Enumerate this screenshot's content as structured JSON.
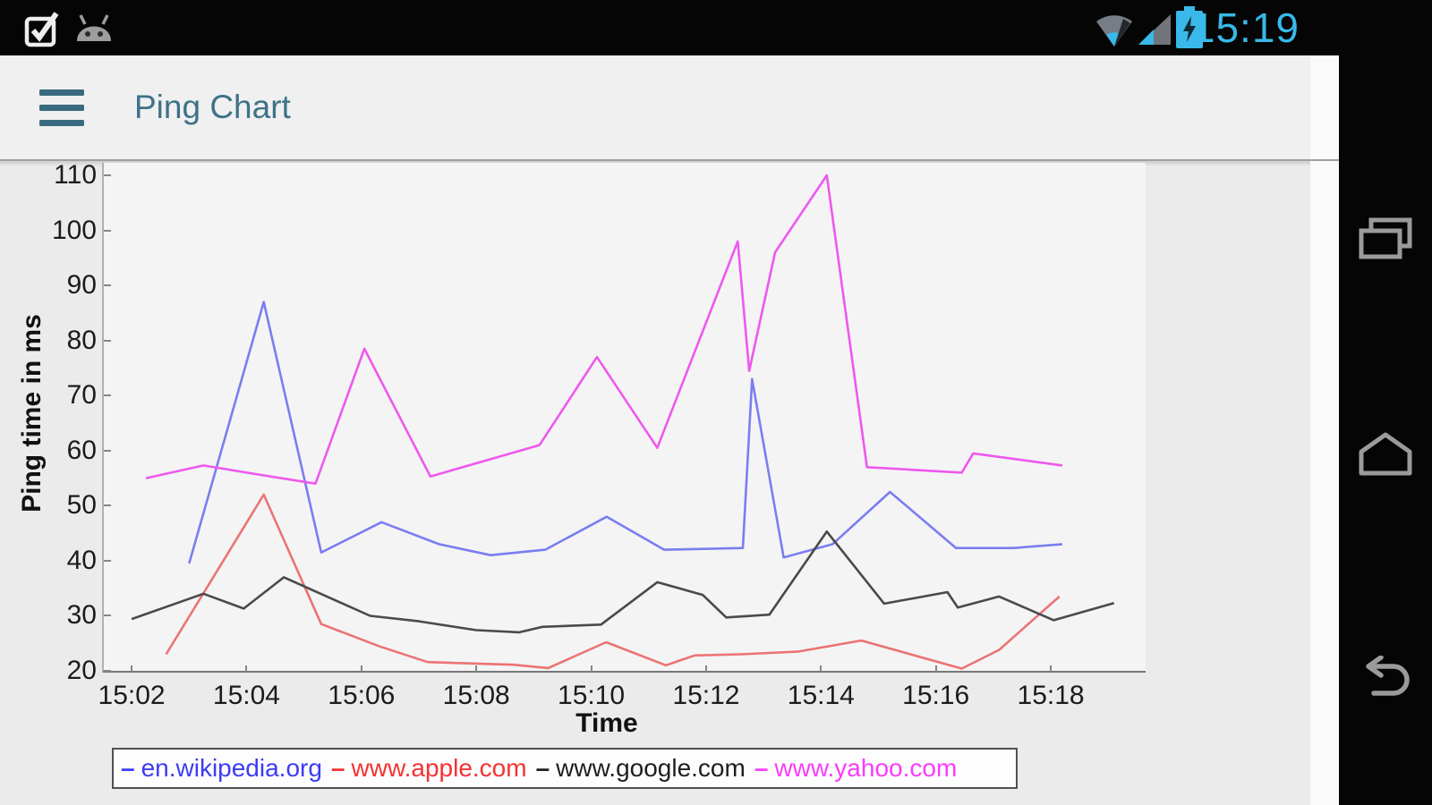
{
  "status_bar": {
    "time": "15:19",
    "accent_color": "#38b9e9",
    "left_icons": [
      "checkbox-icon",
      "android-icon"
    ],
    "right_icons": [
      "wifi-icon",
      "signal-icon",
      "battery-charging-icon"
    ]
  },
  "app_bar": {
    "title": "Ping Chart",
    "title_color": "#3e7288",
    "menu_icon": "hamburger-icon"
  },
  "navigation_bar": {
    "buttons": [
      "recent-apps",
      "home",
      "back"
    ]
  },
  "chart_data": {
    "type": "line",
    "title": "",
    "xlabel": "Time",
    "ylabel": "Ping time in ms",
    "x_unit": "minutes after 15:00",
    "x_tick_labels": [
      "15:02",
      "15:04",
      "15:06",
      "15:08",
      "15:10",
      "15:12",
      "15:14",
      "15:16",
      "15:18"
    ],
    "x_tick_minutes": [
      2,
      4,
      6,
      8,
      10,
      12,
      14,
      16,
      18
    ],
    "x_range_minutes": [
      1.5,
      19.65
    ],
    "y_ticks": [
      20,
      30,
      40,
      50,
      60,
      70,
      80,
      90,
      100,
      110
    ],
    "ylim": [
      19.5,
      111.5
    ],
    "grid": false,
    "legend_position": "bottom",
    "plot_bg": "#f4f4f5",
    "panel_bg": "#ebebec",
    "series": [
      {
        "name": "en.wikipedia.org",
        "line_color": "#7b7df0",
        "legend_color": "#3c3cf5",
        "points": [
          [
            3.0,
            39.5
          ],
          [
            4.3,
            87
          ],
          [
            5.3,
            41.5
          ],
          [
            6.35,
            47
          ],
          [
            7.35,
            43
          ],
          [
            8.25,
            41
          ],
          [
            9.2,
            42
          ],
          [
            10.27,
            48
          ],
          [
            11.27,
            42
          ],
          [
            12.64,
            42.3
          ],
          [
            12.8,
            73
          ],
          [
            13.35,
            40.6
          ],
          [
            14.2,
            43
          ],
          [
            15.2,
            52.5
          ],
          [
            16.35,
            42.3
          ],
          [
            17.35,
            42.3
          ],
          [
            18.2,
            43
          ]
        ]
      },
      {
        "name": "www.apple.com",
        "line_color": "#ec7373",
        "legend_color": "#f53232",
        "points": [
          [
            2.6,
            23
          ],
          [
            4.3,
            52
          ],
          [
            5.3,
            28.5
          ],
          [
            6.3,
            24.5
          ],
          [
            7.15,
            21.6
          ],
          [
            8.65,
            21.1
          ],
          [
            9.25,
            20.5
          ],
          [
            10.26,
            25.2
          ],
          [
            11.3,
            21
          ],
          [
            11.8,
            22.8
          ],
          [
            12.6,
            23
          ],
          [
            13.6,
            23.5
          ],
          [
            14.7,
            25.5
          ],
          [
            16.45,
            20.4
          ],
          [
            17.1,
            23.8
          ],
          [
            18.15,
            33.5
          ]
        ]
      },
      {
        "name": "www.google.com",
        "line_color": "#4a4a4a",
        "legend_color": "#1e1e1e",
        "points": [
          [
            2.0,
            29.4
          ],
          [
            3.25,
            34
          ],
          [
            3.95,
            31.3
          ],
          [
            4.65,
            37
          ],
          [
            6.15,
            30
          ],
          [
            7.0,
            29
          ],
          [
            8.0,
            27.4
          ],
          [
            8.75,
            27
          ],
          [
            9.15,
            28
          ],
          [
            10.17,
            28.4
          ],
          [
            11.15,
            36.1
          ],
          [
            11.94,
            33.8
          ],
          [
            12.35,
            29.7
          ],
          [
            13.1,
            30.2
          ],
          [
            14.1,
            45.3
          ],
          [
            15.1,
            32.2
          ],
          [
            16.2,
            34.3
          ],
          [
            16.38,
            31.5
          ],
          [
            17.1,
            33.5
          ],
          [
            18.05,
            29.2
          ],
          [
            19.1,
            32.3
          ]
        ]
      },
      {
        "name": "www.yahoo.com",
        "line_color": "#ee58ee",
        "legend_color": "#fa3cfa",
        "points": [
          [
            2.25,
            55
          ],
          [
            3.25,
            57.3
          ],
          [
            4.3,
            55.5
          ],
          [
            5.2,
            54
          ],
          [
            6.05,
            78.5
          ],
          [
            7.2,
            55.3
          ],
          [
            9.1,
            61
          ],
          [
            10.1,
            77
          ],
          [
            11.15,
            60.5
          ],
          [
            12.55,
            98
          ],
          [
            12.75,
            74.5
          ],
          [
            13.2,
            96
          ],
          [
            14.1,
            110
          ],
          [
            14.8,
            57
          ],
          [
            16.45,
            56
          ],
          [
            16.65,
            59.5
          ],
          [
            18.2,
            57.3
          ]
        ]
      }
    ]
  }
}
